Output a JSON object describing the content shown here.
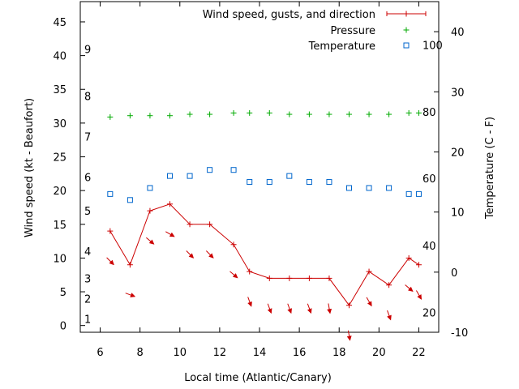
{
  "chart_data": {
    "type": "line",
    "xlabel": "Local time (Atlantic/Canary)",
    "ylabel_left": "Wind speed (kt - Beaufort)",
    "ylabel_right": "Temperature (C - F)",
    "xlim": [
      5,
      23
    ],
    "ylim_left": [
      -1,
      48
    ],
    "ylim_right": [
      -10,
      45
    ],
    "x_ticks": [
      6,
      8,
      10,
      12,
      14,
      16,
      18,
      20,
      22
    ],
    "y_ticks_left": [
      0,
      5,
      10,
      15,
      20,
      25,
      30,
      35,
      40,
      45
    ],
    "y_ticks_right": [
      -10,
      0,
      10,
      20,
      30,
      40
    ],
    "beaufort_labels": [
      {
        "label": "1",
        "kt": 1
      },
      {
        "label": "2",
        "kt": 4
      },
      {
        "label": "3",
        "kt": 7
      },
      {
        "label": "4",
        "kt": 11
      },
      {
        "label": "5",
        "kt": 17
      },
      {
        "label": "6",
        "kt": 22
      },
      {
        "label": "7",
        "kt": 28
      },
      {
        "label": "8",
        "kt": 34
      },
      {
        "label": "9",
        "kt": 41
      }
    ],
    "fahrenheit_labels": [
      {
        "label": "20",
        "c": -6.7
      },
      {
        "label": "40",
        "c": 4.4
      },
      {
        "label": "60",
        "c": 15.6
      },
      {
        "label": "80",
        "c": 26.7
      },
      {
        "label": "100",
        "c": 37.8
      }
    ],
    "legend_position": "top-right",
    "series": [
      {
        "name": "Wind speed, gusts, and direction",
        "style": "line+plus",
        "color": "#cc0000",
        "x": [
          6.5,
          7.5,
          8.5,
          9.5,
          10.5,
          11.5,
          12.7,
          13.5,
          14.5,
          15.5,
          16.5,
          17.5,
          18.5,
          19.5,
          20.5,
          21.5,
          22.0
        ],
        "y": [
          14,
          9,
          17,
          18,
          15,
          15,
          12,
          8,
          7,
          7,
          7,
          7,
          3,
          8,
          6,
          10,
          9
        ],
        "direction_arrows_deg": [
          315,
          290,
          310,
          300,
          315,
          315,
          310,
          340,
          340,
          340,
          340,
          350,
          350,
          330,
          340,
          310,
          330
        ]
      },
      {
        "name": "Pressure",
        "style": "plus",
        "color": "#00aa00",
        "x": [
          6.5,
          7.5,
          8.5,
          9.5,
          10.5,
          11.5,
          12.7,
          13.5,
          14.5,
          15.5,
          16.5,
          17.5,
          18.5,
          19.5,
          20.5,
          21.5,
          22.0
        ],
        "y": [
          30.9,
          31.1,
          31.1,
          31.1,
          31.3,
          31.3,
          31.5,
          31.5,
          31.5,
          31.3,
          31.3,
          31.3,
          31.3,
          31.3,
          31.3,
          31.5,
          31.5
        ]
      },
      {
        "name": "Temperature",
        "style": "square",
        "color": "#0066cc",
        "axis": "right",
        "x": [
          6.5,
          7.5,
          8.5,
          9.5,
          10.5,
          11.5,
          12.7,
          13.5,
          14.5,
          15.5,
          16.5,
          17.5,
          18.5,
          19.5,
          20.5,
          21.5,
          22.0
        ],
        "y": [
          13,
          12,
          14,
          16,
          16,
          17,
          17,
          15,
          15,
          16,
          15,
          15,
          14,
          14,
          14,
          13,
          13
        ]
      }
    ]
  }
}
